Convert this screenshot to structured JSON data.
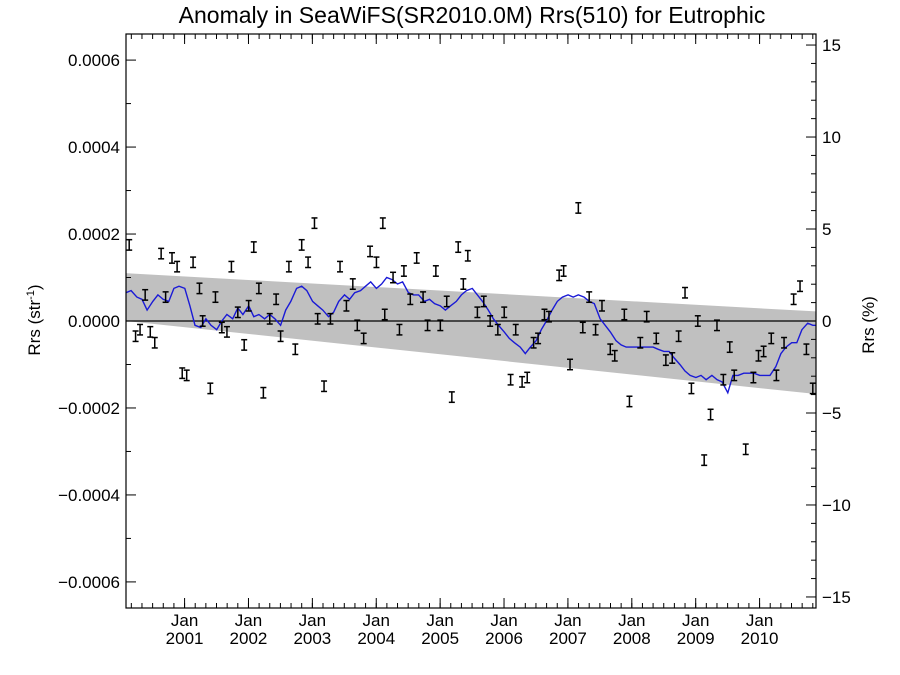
{
  "chart_data": {
    "type": "scatter",
    "title": "Anomaly in SeaWiFS(SR2010.0M) Rrs(510) for Eutrophic",
    "ylabel": "Rrs (str",
    "ylabel_sup": "-1",
    "ylabel_close": ")",
    "y2label": "Rrs (%)",
    "xlim": [
      2000.0,
      2010.8
    ],
    "ylim": [
      -0.00066,
      0.00066
    ],
    "y2lim": [
      -15.6,
      15.6
    ],
    "y_ticks": [
      {
        "v": 0.0006,
        "label": "0.0006"
      },
      {
        "v": 0.0004,
        "label": "0.0004"
      },
      {
        "v": 0.0002,
        "label": "0.0002"
      },
      {
        "v": 0.0,
        "label": "0.0000"
      },
      {
        "v": -0.0002,
        "label": "−0.0002"
      },
      {
        "v": -0.0004,
        "label": "−0.0004"
      },
      {
        "v": -0.0006,
        "label": "−0.0006"
      }
    ],
    "y2_ticks": [
      {
        "v": 15,
        "label": "15"
      },
      {
        "v": 10,
        "label": "10"
      },
      {
        "v": 5,
        "label": "5"
      },
      {
        "v": 0,
        "label": "0"
      },
      {
        "v": -5,
        "label": "−5"
      },
      {
        "v": -10,
        "label": "−10"
      },
      {
        "v": -15,
        "label": "−15"
      }
    ],
    "x_ticks": [
      {
        "v": 2000.917,
        "month": "Jan",
        "year": "2001"
      },
      {
        "v": 2001.917,
        "month": "Jan",
        "year": "2002"
      },
      {
        "v": 2002.917,
        "month": "Jan",
        "year": "2003"
      },
      {
        "v": 2003.917,
        "month": "Jan",
        "year": "2004"
      },
      {
        "v": 2004.917,
        "month": "Jan",
        "year": "2005"
      },
      {
        "v": 2005.917,
        "month": "Jan",
        "year": "2006"
      },
      {
        "v": 2006.917,
        "month": "Jan",
        "year": "2007"
      },
      {
        "v": 2007.917,
        "month": "Jan",
        "year": "2008"
      },
      {
        "v": 2008.917,
        "month": "Jan",
        "year": "2009"
      },
      {
        "v": 2009.917,
        "month": "Jan",
        "year": "2010"
      }
    ],
    "zero_line": 0.0,
    "confidence_band": {
      "x": [
        2000.0,
        2010.8
      ],
      "upper": [
        0.00011,
        2.2e-05
      ],
      "lower": [
        0.0,
        -0.000168
      ],
      "color": "#c0c0c0"
    },
    "series": [
      {
        "type": "errorbar",
        "color": "#000000",
        "err": 1.2e-05,
        "points": [
          [
            2000.05,
            0.000175
          ],
          [
            2000.15,
            -3.5e-05
          ],
          [
            2000.22,
            -2e-05
          ],
          [
            2000.3,
            6e-05
          ],
          [
            2000.38,
            -2.5e-05
          ],
          [
            2000.45,
            -5e-05
          ],
          [
            2000.55,
            0.000155
          ],
          [
            2000.62,
            5.5e-05
          ],
          [
            2000.72,
            0.000145
          ],
          [
            2000.8,
            0.000125
          ],
          [
            2000.88,
            -0.00012
          ],
          [
            2000.95,
            -0.000125
          ],
          [
            2001.05,
            0.000135
          ],
          [
            2001.15,
            7.5e-05
          ],
          [
            2001.2,
            0.0
          ],
          [
            2001.32,
            -0.000155
          ],
          [
            2001.4,
            5.5e-05
          ],
          [
            2001.5,
            -1.5e-05
          ],
          [
            2001.58,
            -2.5e-05
          ],
          [
            2001.65,
            0.000125
          ],
          [
            2001.75,
            2e-05
          ],
          [
            2001.85,
            -5.5e-05
          ],
          [
            2001.92,
            3.5e-05
          ],
          [
            2002.0,
            0.00017
          ],
          [
            2002.08,
            7.5e-05
          ],
          [
            2002.15,
            -0.000165
          ],
          [
            2002.25,
            5e-06
          ],
          [
            2002.35,
            5e-05
          ],
          [
            2002.42,
            -3.5e-05
          ],
          [
            2002.55,
            0.000125
          ],
          [
            2002.65,
            -6.5e-05
          ],
          [
            2002.75,
            0.000175
          ],
          [
            2002.85,
            0.000135
          ],
          [
            2002.95,
            0.000225
          ],
          [
            2003.0,
            5e-06
          ],
          [
            2003.1,
            -0.00015
          ],
          [
            2003.2,
            5e-06
          ],
          [
            2003.35,
            0.000125
          ],
          [
            2003.45,
            3.5e-05
          ],
          [
            2003.55,
            8.5e-05
          ],
          [
            2003.62,
            -1e-05
          ],
          [
            2003.72,
            -4e-05
          ],
          [
            2003.82,
            0.00016
          ],
          [
            2003.92,
            0.000135
          ],
          [
            2004.02,
            0.000225
          ],
          [
            2004.05,
            1.5e-05
          ],
          [
            2004.18,
            0.0001
          ],
          [
            2004.28,
            -2e-05
          ],
          [
            2004.35,
            0.000115
          ],
          [
            2004.45,
            5e-05
          ],
          [
            2004.55,
            0.000145
          ],
          [
            2004.65,
            5.5e-05
          ],
          [
            2004.72,
            -1e-05
          ],
          [
            2004.85,
            0.000115
          ],
          [
            2004.92,
            -1e-05
          ],
          [
            2005.02,
            4.5e-05
          ],
          [
            2005.1,
            -0.000175
          ],
          [
            2005.2,
            0.00017
          ],
          [
            2005.28,
            8.5e-05
          ],
          [
            2005.35,
            0.00015
          ],
          [
            2005.5,
            2e-05
          ],
          [
            2005.6,
            4.5e-05
          ],
          [
            2005.7,
            0.0
          ],
          [
            2005.82,
            -2e-05
          ],
          [
            2005.92,
            2e-05
          ],
          [
            2006.02,
            -0.000135
          ],
          [
            2006.1,
            -2e-05
          ],
          [
            2006.2,
            -0.00014
          ],
          [
            2006.28,
            -0.00013
          ],
          [
            2006.38,
            -5e-05
          ],
          [
            2006.45,
            -4e-05
          ],
          [
            2006.55,
            1.5e-05
          ],
          [
            2006.62,
            1e-05
          ],
          [
            2006.78,
            0.000105
          ],
          [
            2006.85,
            0.000115
          ],
          [
            2006.95,
            -0.0001
          ],
          [
            2007.08,
            0.00026
          ],
          [
            2007.15,
            -1.5e-05
          ],
          [
            2007.25,
            5.5e-05
          ],
          [
            2007.35,
            -2e-05
          ],
          [
            2007.45,
            3.5e-05
          ],
          [
            2007.58,
            -6.5e-05
          ],
          [
            2007.65,
            -8e-05
          ],
          [
            2007.8,
            1.5e-05
          ],
          [
            2007.88,
            -0.000185
          ],
          [
            2008.05,
            -5e-05
          ],
          [
            2008.15,
            1e-05
          ],
          [
            2008.3,
            -4e-05
          ],
          [
            2008.45,
            -9e-05
          ],
          [
            2008.55,
            -8.5e-05
          ],
          [
            2008.65,
            -3.5e-05
          ],
          [
            2008.75,
            6.5e-05
          ],
          [
            2008.85,
            -0.000155
          ],
          [
            2008.95,
            0.0
          ],
          [
            2009.05,
            -0.00032
          ],
          [
            2009.15,
            -0.000215
          ],
          [
            2009.25,
            -1e-05
          ],
          [
            2009.35,
            -0.000135
          ],
          [
            2009.45,
            -6e-05
          ],
          [
            2009.52,
            -0.000125
          ],
          [
            2009.7,
            -0.000295
          ],
          [
            2009.82,
            -0.00013
          ],
          [
            2009.9,
            -8e-05
          ],
          [
            2009.98,
            -7e-05
          ],
          [
            2010.1,
            -4e-05
          ],
          [
            2010.18,
            -0.000125
          ],
          [
            2010.3,
            -5e-05
          ],
          [
            2010.45,
            5e-05
          ],
          [
            2010.55,
            8e-05
          ],
          [
            2010.65,
            -6.5e-05
          ],
          [
            2010.75,
            -0.000155
          ]
        ]
      },
      {
        "type": "line",
        "color": "#1a1ad6",
        "points": [
          [
            2000.0,
            6.5e-05
          ],
          [
            2000.08,
            7e-05
          ],
          [
            2000.17,
            5.5e-05
          ],
          [
            2000.25,
            5e-05
          ],
          [
            2000.33,
            2.5e-05
          ],
          [
            2000.42,
            4.5e-05
          ],
          [
            2000.5,
            6e-05
          ],
          [
            2000.58,
            5e-05
          ],
          [
            2000.67,
            4.5e-05
          ],
          [
            2000.75,
            7.5e-05
          ],
          [
            2000.83,
            8e-05
          ],
          [
            2000.92,
            7.5e-05
          ],
          [
            2001.0,
            3.5e-05
          ],
          [
            2001.08,
            -1e-05
          ],
          [
            2001.17,
            -1.5e-05
          ],
          [
            2001.25,
            5e-06
          ],
          [
            2001.33,
            -1e-05
          ],
          [
            2001.42,
            -2e-05
          ],
          [
            2001.5,
            0.0
          ],
          [
            2001.58,
            1.5e-05
          ],
          [
            2001.67,
            5e-06
          ],
          [
            2001.75,
            3e-05
          ],
          [
            2001.83,
            1.5e-05
          ],
          [
            2001.92,
            3.5e-05
          ],
          [
            2002.0,
            1e-05
          ],
          [
            2002.08,
            1.5e-05
          ],
          [
            2002.17,
            5e-06
          ],
          [
            2002.25,
            1.5e-05
          ],
          [
            2002.33,
            5e-06
          ],
          [
            2002.42,
            -1e-05
          ],
          [
            2002.5,
            2.5e-05
          ],
          [
            2002.58,
            4.5e-05
          ],
          [
            2002.67,
            7.5e-05
          ],
          [
            2002.75,
            8e-05
          ],
          [
            2002.83,
            7e-05
          ],
          [
            2002.92,
            4.5e-05
          ],
          [
            2003.0,
            3.5e-05
          ],
          [
            2003.08,
            2.5e-05
          ],
          [
            2003.17,
            1e-05
          ],
          [
            2003.25,
            2e-05
          ],
          [
            2003.33,
            4.5e-05
          ],
          [
            2003.42,
            6e-05
          ],
          [
            2003.5,
            5e-05
          ],
          [
            2003.58,
            6.5e-05
          ],
          [
            2003.67,
            7e-05
          ],
          [
            2003.75,
            8e-05
          ],
          [
            2003.83,
            9e-05
          ],
          [
            2003.92,
            7.5e-05
          ],
          [
            2004.0,
            8.5e-05
          ],
          [
            2004.08,
            0.0001
          ],
          [
            2004.17,
            9.5e-05
          ],
          [
            2004.25,
            8.5e-05
          ],
          [
            2004.33,
            9e-05
          ],
          [
            2004.42,
            6.5e-05
          ],
          [
            2004.5,
            6e-05
          ],
          [
            2004.58,
            6e-05
          ],
          [
            2004.67,
            4.5e-05
          ],
          [
            2004.75,
            5e-05
          ],
          [
            2004.83,
            4e-05
          ],
          [
            2004.92,
            3.5e-05
          ],
          [
            2005.0,
            2.5e-05
          ],
          [
            2005.08,
            3.5e-05
          ],
          [
            2005.17,
            4.5e-05
          ],
          [
            2005.25,
            6e-05
          ],
          [
            2005.33,
            7e-05
          ],
          [
            2005.42,
            7.5e-05
          ],
          [
            2005.5,
            6e-05
          ],
          [
            2005.58,
            4.5e-05
          ],
          [
            2005.67,
            2.5e-05
          ],
          [
            2005.75,
            5e-06
          ],
          [
            2005.83,
            -1e-05
          ],
          [
            2005.92,
            -2.5e-05
          ],
          [
            2006.0,
            -4e-05
          ],
          [
            2006.08,
            -5e-05
          ],
          [
            2006.17,
            -6e-05
          ],
          [
            2006.25,
            -7.5e-05
          ],
          [
            2006.33,
            -6e-05
          ],
          [
            2006.42,
            -4.5e-05
          ],
          [
            2006.5,
            -2e-05
          ],
          [
            2006.58,
            0.0
          ],
          [
            2006.67,
            2.5e-05
          ],
          [
            2006.75,
            4.5e-05
          ],
          [
            2006.83,
            5.5e-05
          ],
          [
            2006.92,
            6e-05
          ],
          [
            2007.0,
            5.5e-05
          ],
          [
            2007.08,
            6e-05
          ],
          [
            2007.17,
            5.5e-05
          ],
          [
            2007.25,
            4.5e-05
          ],
          [
            2007.33,
            4e-05
          ],
          [
            2007.42,
            5e-06
          ],
          [
            2007.5,
            -1e-05
          ],
          [
            2007.58,
            -2.5e-05
          ],
          [
            2007.67,
            -4.5e-05
          ],
          [
            2007.75,
            -5.5e-05
          ],
          [
            2007.83,
            -6e-05
          ],
          [
            2007.92,
            -6e-05
          ],
          [
            2008.0,
            -6e-05
          ],
          [
            2008.08,
            -6e-05
          ],
          [
            2008.17,
            -6e-05
          ],
          [
            2008.25,
            -6e-05
          ],
          [
            2008.33,
            -6.5e-05
          ],
          [
            2008.42,
            -7e-05
          ],
          [
            2008.5,
            -7e-05
          ],
          [
            2008.58,
            -8.5e-05
          ],
          [
            2008.67,
            -0.0001
          ],
          [
            2008.75,
            -0.000115
          ],
          [
            2008.83,
            -0.000125
          ],
          [
            2008.92,
            -0.00013
          ],
          [
            2009.0,
            -0.000125
          ],
          [
            2009.08,
            -0.000135
          ],
          [
            2009.17,
            -0.000125
          ],
          [
            2009.25,
            -0.000135
          ],
          [
            2009.33,
            -0.00014
          ],
          [
            2009.42,
            -0.000165
          ],
          [
            2009.5,
            -0.000125
          ],
          [
            2009.58,
            -0.000125
          ],
          [
            2009.67,
            -0.00012
          ],
          [
            2009.75,
            -0.00012
          ],
          [
            2009.83,
            -0.00012
          ],
          [
            2009.92,
            -0.000125
          ],
          [
            2010.0,
            -0.000125
          ],
          [
            2010.08,
            -0.000125
          ],
          [
            2010.17,
            -0.000105
          ],
          [
            2010.25,
            -7.5e-05
          ],
          [
            2010.33,
            -6e-05
          ],
          [
            2010.42,
            -5e-05
          ],
          [
            2010.5,
            -5e-05
          ],
          [
            2010.58,
            -2e-05
          ],
          [
            2010.67,
            -5e-06
          ],
          [
            2010.75,
            -1e-05
          ],
          [
            2010.8,
            -1e-05
          ]
        ]
      }
    ]
  }
}
